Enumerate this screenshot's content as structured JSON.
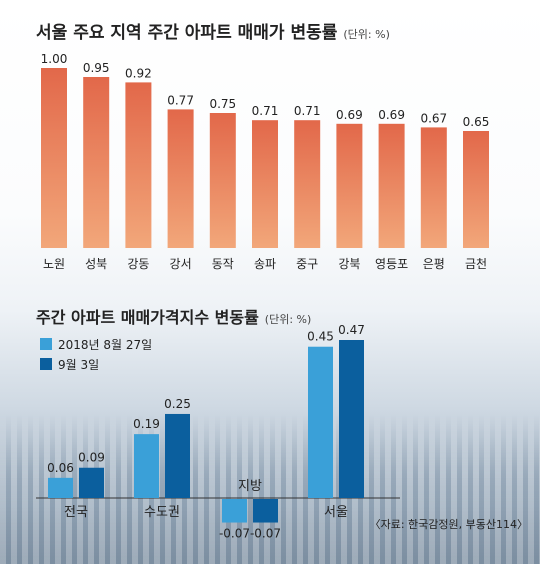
{
  "chart_data": [
    {
      "type": "bar",
      "title": "서울 주요 지역 주간 아파트 매매가 변동률",
      "unit_note": "(단위: %)",
      "categories": [
        "노원",
        "성북",
        "강동",
        "강서",
        "동작",
        "송파",
        "중구",
        "강북",
        "영등포",
        "은평",
        "금천"
      ],
      "values": [
        1.0,
        0.95,
        0.92,
        0.77,
        0.75,
        0.71,
        0.71,
        0.69,
        0.69,
        0.67,
        0.65
      ],
      "value_labels": [
        "1.00",
        "0.95",
        "0.92",
        "0.77",
        "0.75",
        "0.71",
        "0.71",
        "0.69",
        "0.69",
        "0.67",
        "0.65"
      ],
      "ylim": [
        0,
        1.0
      ],
      "grid": false,
      "colors": {
        "bar_top": "#e2684a",
        "bar_bottom": "#f2a77a"
      }
    },
    {
      "type": "bar",
      "title": "주간 아파트 매매가격지수 변동률",
      "unit_note": "(단위: %)",
      "categories": [
        "전국",
        "수도권",
        "지방",
        "서울"
      ],
      "series": [
        {
          "name": "2018년 8월 27일",
          "values": [
            0.06,
            0.19,
            -0.07,
            0.45
          ],
          "labels": [
            "0.06",
            "0.19",
            "-0.07",
            "0.45"
          ],
          "color": "#3aa0d8"
        },
        {
          "name": "9월 3일",
          "values": [
            0.09,
            0.25,
            -0.07,
            0.47
          ],
          "labels": [
            "0.09",
            "0.25",
            "-0.07",
            "0.47"
          ],
          "color": "#0b5f9e"
        }
      ],
      "legend_position": "top-left",
      "ylim": [
        -0.07,
        0.47
      ],
      "grid": false,
      "source": "〈자료: 한국감정원, 부동산114〉"
    }
  ]
}
